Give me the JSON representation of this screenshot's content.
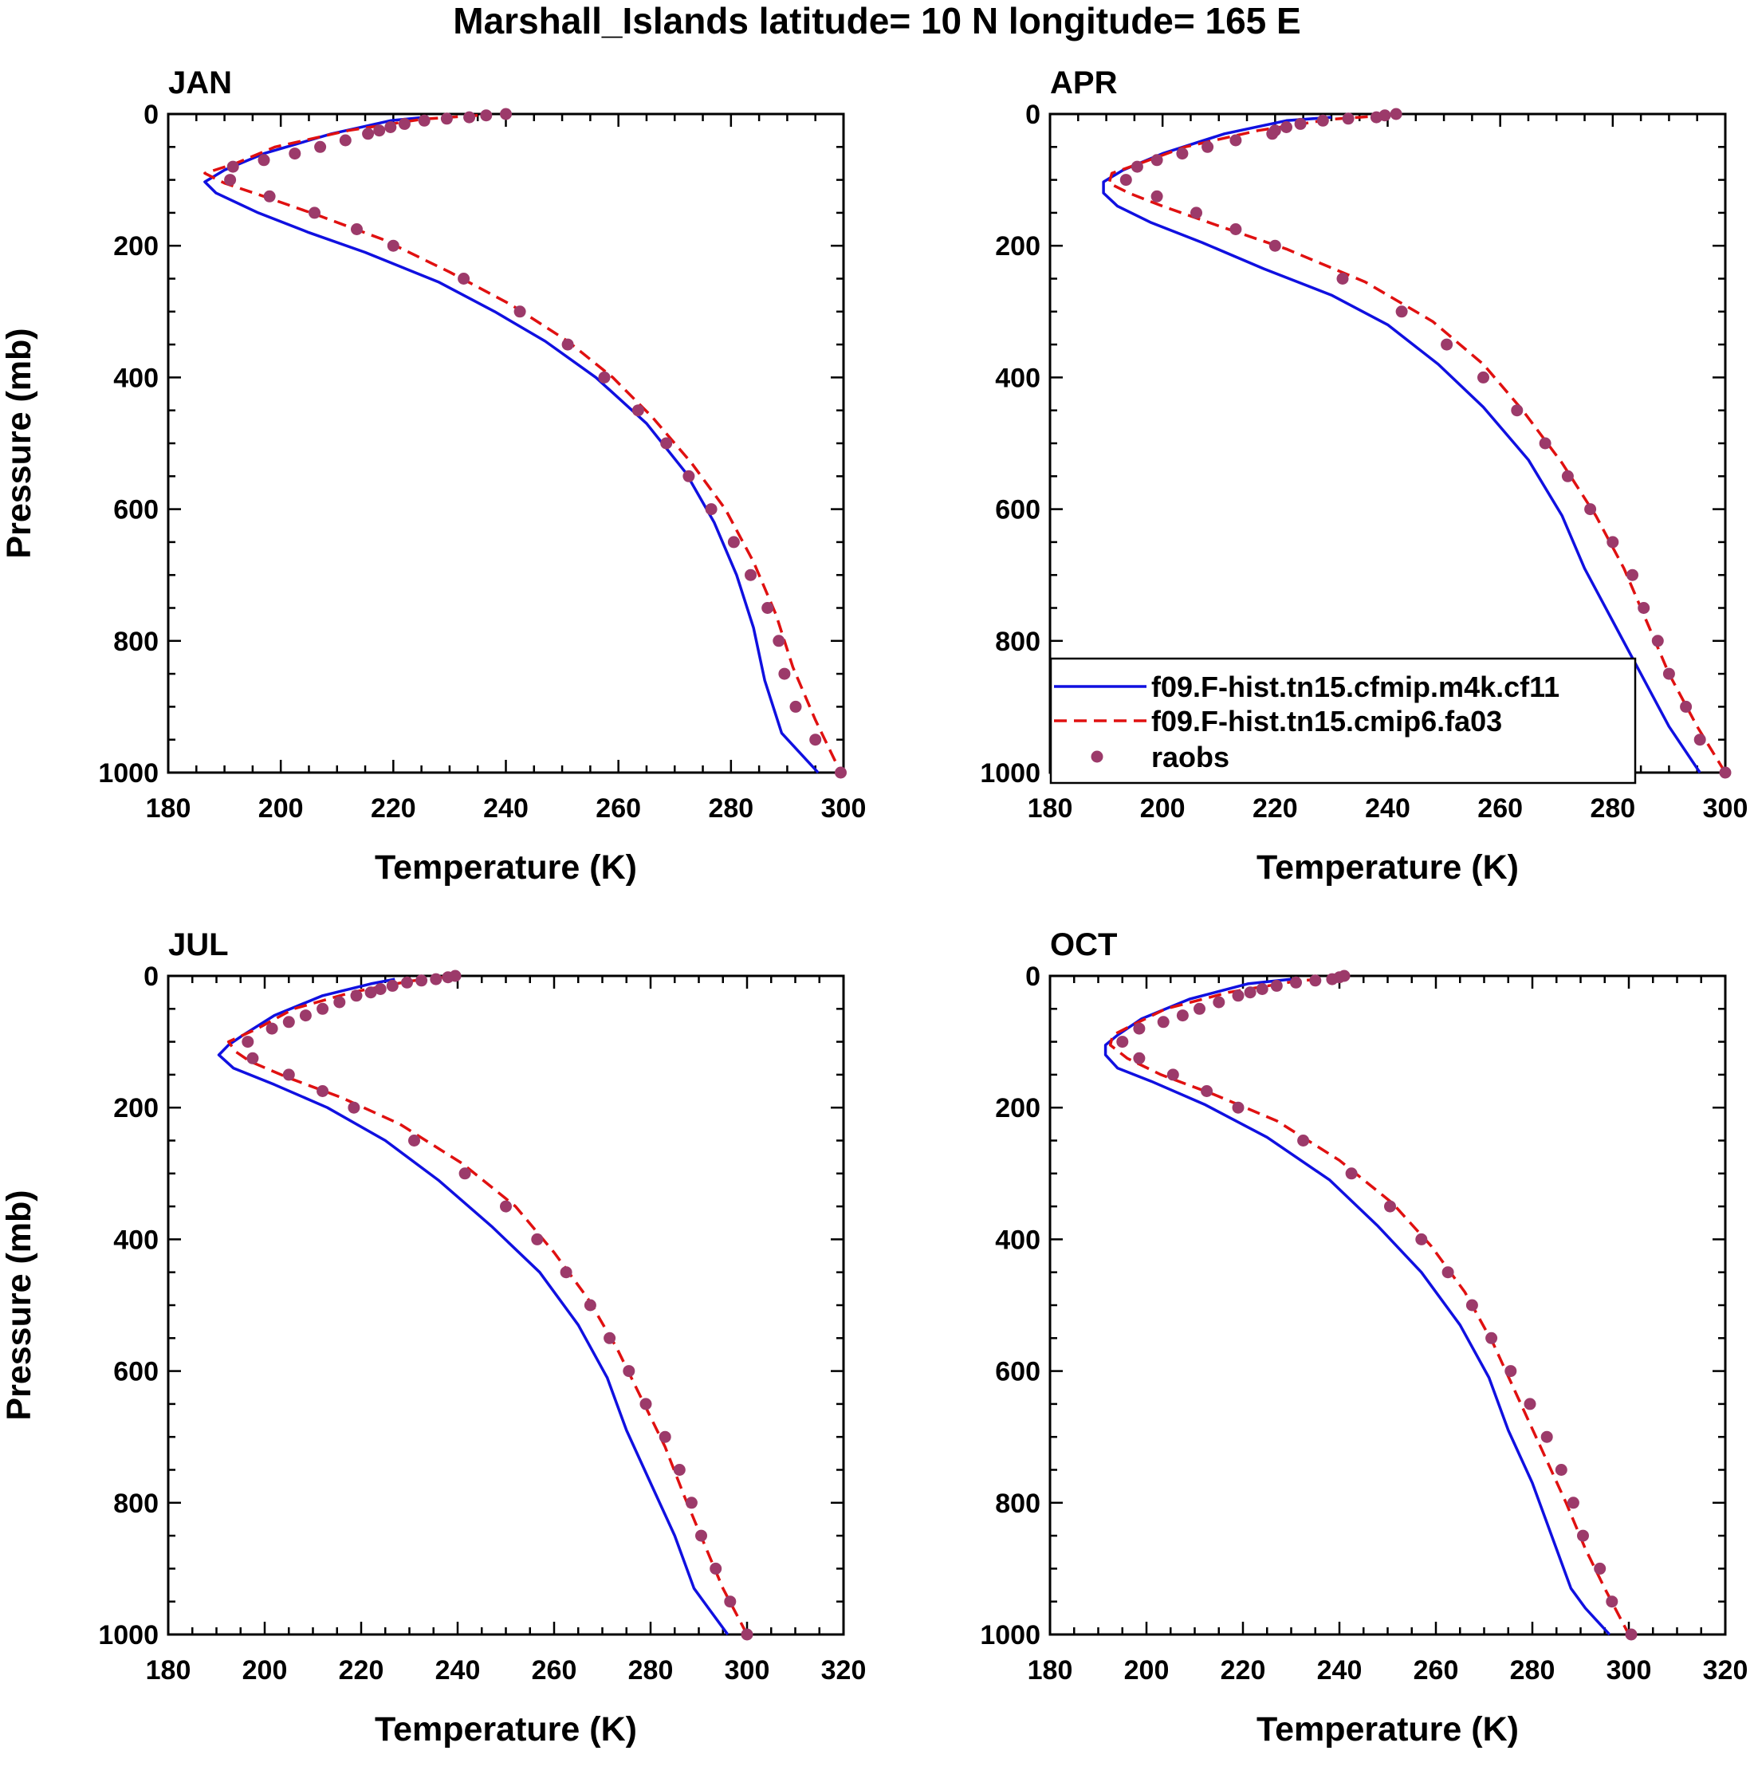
{
  "figure": {
    "title": "Marshall_Islands  latitude= 10 N longitude= 165 E"
  },
  "legend": {
    "items": [
      {
        "label": "f09.F-hist.tn15.cfmip.m4k.cf11",
        "style": "solid",
        "color": "#1010e0"
      },
      {
        "label": "f09.F-hist.tn15.cmip6.fa03",
        "style": "dashed",
        "color": "#e01010"
      },
      {
        "label": "raobs",
        "style": "marker",
        "color": "#9c3a6a"
      }
    ]
  },
  "chart_data": [
    {
      "type": "line",
      "title": "JAN",
      "xlabel": "Temperature (K)",
      "ylabel": "Pressure (mb)",
      "xlim": [
        180,
        300
      ],
      "ylim": [
        1000,
        0
      ],
      "xticks": [
        180,
        200,
        220,
        240,
        260,
        280,
        300
      ],
      "yticks": [
        0,
        200,
        400,
        600,
        800,
        1000
      ],
      "grid": false,
      "series": [
        {
          "name": "f09.F-hist.tn15.cfmip.m4k.cf11",
          "kind": "line",
          "x": [
            225.5,
            219.5,
            209,
            197,
            190,
            186.5,
            188.5,
            196,
            205,
            215,
            228,
            238,
            247,
            256,
            265,
            272,
            277,
            281,
            284,
            286,
            289,
            295.5
          ],
          "y": [
            5,
            10,
            30,
            60,
            85,
            103,
            120,
            150,
            180,
            210,
            255,
            300,
            345,
            400,
            470,
            545,
            620,
            700,
            780,
            860,
            940,
            1000
          ]
        },
        {
          "name": "f09.F-hist.tn15.cmip6.fa03",
          "kind": "line",
          "x": [
            235,
            225,
            212,
            199,
            192,
            186.5,
            190,
            197,
            207,
            218,
            230,
            241,
            251,
            259,
            266,
            273,
            279,
            284,
            288,
            291,
            295,
            299.5
          ],
          "y": [
            2,
            8,
            25,
            50,
            75,
            90,
            105,
            125,
            155,
            190,
            240,
            290,
            345,
            400,
            460,
            530,
            600,
            680,
            760,
            840,
            920,
            1000
          ]
        },
        {
          "name": "raobs",
          "kind": "scatter",
          "x": [
            240,
            236.5,
            233.5,
            229.5,
            225.5,
            222,
            219.5,
            217.5,
            215.5,
            211.5,
            207,
            202.5,
            197,
            191.5,
            191,
            198,
            206,
            213.5,
            220,
            232.5,
            242.5,
            251,
            257.5,
            263.5,
            268.5,
            272.5,
            276.5,
            280.5,
            283.5,
            286.5,
            288.5,
            289.5,
            291.5,
            295,
            299.5
          ],
          "y": [
            0,
            2,
            5,
            7,
            10,
            15,
            20,
            25,
            30,
            40,
            50,
            60,
            70,
            80,
            100,
            125,
            150,
            175,
            200,
            250,
            300,
            350,
            400,
            450,
            500,
            550,
            600,
            650,
            700,
            750,
            800,
            850,
            900,
            950,
            1000
          ]
        }
      ]
    },
    {
      "type": "line",
      "title": "APR",
      "xlabel": "Temperature (K)",
      "ylabel": "",
      "xlim": [
        180,
        300
      ],
      "ylim": [
        1000,
        0
      ],
      "xticks": [
        180,
        200,
        220,
        240,
        260,
        280,
        300
      ],
      "yticks": [
        0,
        200,
        400,
        600,
        800,
        1000
      ],
      "grid": false,
      "series": [
        {
          "name": "f09.F-hist.tn15.cfmip.m4k.cf11",
          "kind": "line",
          "x": [
            230,
            222,
            211,
            200,
            193,
            189.5,
            189.5,
            192,
            198,
            207,
            218,
            230,
            240,
            249,
            257,
            265,
            271,
            275,
            280,
            285,
            290,
            295.5
          ],
          "y": [
            5,
            10,
            30,
            60,
            85,
            103,
            120,
            140,
            165,
            195,
            235,
            275,
            320,
            380,
            445,
            525,
            610,
            690,
            770,
            850,
            930,
            1000
          ]
        },
        {
          "name": "f09.F-hist.tn15.cmip6.fa03",
          "kind": "line",
          "x": [
            240,
            230,
            217,
            204,
            196,
            191,
            190.5,
            194,
            200,
            210,
            222,
            236,
            248,
            257,
            264,
            271,
            277,
            282,
            286,
            290,
            295,
            300
          ],
          "y": [
            2,
            8,
            25,
            50,
            75,
            90,
            105,
            120,
            140,
            170,
            205,
            255,
            315,
            380,
            450,
            530,
            610,
            690,
            770,
            850,
            930,
            1000
          ]
        },
        {
          "name": "raobs",
          "kind": "scatter",
          "x": [
            241.5,
            239.5,
            238,
            233,
            228.5,
            224.5,
            222,
            220,
            219.5,
            213,
            208,
            203.5,
            199,
            195.5,
            193.5,
            199,
            206,
            213,
            220,
            232,
            242.5,
            250.5,
            257,
            263,
            268,
            272,
            276,
            280,
            283.5,
            285.5,
            288,
            290,
            293,
            295.5,
            300
          ],
          "y": [
            0,
            2,
            5,
            7,
            10,
            15,
            20,
            25,
            30,
            40,
            50,
            60,
            70,
            80,
            100,
            125,
            150,
            175,
            200,
            250,
            300,
            350,
            400,
            450,
            500,
            550,
            600,
            650,
            700,
            750,
            800,
            850,
            900,
            950,
            1000
          ]
        }
      ]
    },
    {
      "type": "line",
      "title": "JUL",
      "xlabel": "Temperature (K)",
      "ylabel": "Pressure (mb)",
      "xlim": [
        180,
        320
      ],
      "ylim": [
        1000,
        0
      ],
      "xticks": [
        180,
        200,
        220,
        240,
        260,
        280,
        300,
        320
      ],
      "yticks": [
        0,
        200,
        400,
        600,
        800,
        1000
      ],
      "grid": false,
      "series": [
        {
          "name": "f09.F-hist.tn15.cfmip.m4k.cf11",
          "kind": "line",
          "x": [
            227,
            222,
            212,
            202,
            195.5,
            192.5,
            190.5,
            193.5,
            202,
            213,
            225,
            236,
            247,
            257,
            265,
            271,
            275,
            280,
            285,
            289,
            292,
            296
          ],
          "y": [
            5,
            12,
            30,
            60,
            90,
            105,
            120,
            140,
            165,
            200,
            250,
            310,
            380,
            450,
            530,
            610,
            690,
            770,
            850,
            930,
            960,
            1000
          ]
        },
        {
          "name": "f09.F-hist.tn15.cmip6.fa03",
          "kind": "line",
          "x": [
            237,
            230,
            218,
            206,
            198.5,
            192.5,
            194,
            197,
            205,
            216,
            228,
            241,
            252,
            260,
            267,
            273,
            278,
            283,
            287,
            291,
            295,
            300
          ],
          "y": [
            2,
            8,
            25,
            50,
            80,
            100,
            115,
            130,
            155,
            185,
            225,
            285,
            350,
            420,
            490,
            565,
            640,
            715,
            790,
            860,
            930,
            1000
          ]
        },
        {
          "name": "raobs",
          "kind": "scatter",
          "x": [
            239.5,
            238,
            235.5,
            232.5,
            229.5,
            226.5,
            224,
            222,
            219,
            215.5,
            212,
            208.5,
            205,
            201.5,
            196.5,
            197.5,
            205,
            212,
            218.5,
            231,
            241.5,
            250,
            256.5,
            262.5,
            267.5,
            271.5,
            275.5,
            279,
            283,
            286,
            288.5,
            290.5,
            293.5,
            296.5,
            300
          ],
          "y": [
            0,
            2,
            5,
            7,
            10,
            15,
            20,
            25,
            30,
            40,
            50,
            60,
            70,
            80,
            100,
            125,
            150,
            175,
            200,
            250,
            300,
            350,
            400,
            450,
            500,
            550,
            600,
            650,
            700,
            750,
            800,
            850,
            900,
            950,
            1000
          ]
        }
      ]
    },
    {
      "type": "line",
      "title": "OCT",
      "xlabel": "Temperature (K)",
      "ylabel": "",
      "xlim": [
        180,
        320
      ],
      "ylim": [
        1000,
        0
      ],
      "xticks": [
        180,
        200,
        220,
        240,
        260,
        280,
        300,
        320
      ],
      "yticks": [
        0,
        200,
        400,
        600,
        800,
        1000
      ],
      "grid": false,
      "series": [
        {
          "name": "f09.F-hist.tn15.cfmip.m4k.cf11",
          "kind": "line",
          "x": [
            230,
            221,
            209,
            199,
            194,
            191.5,
            191.5,
            194,
            201,
            212,
            225,
            238,
            248,
            257,
            265,
            271,
            275,
            280,
            284,
            288,
            291,
            296
          ],
          "y": [
            5,
            12,
            35,
            65,
            90,
            105,
            120,
            140,
            160,
            195,
            245,
            310,
            380,
            450,
            530,
            610,
            690,
            770,
            850,
            930,
            960,
            1000
          ]
        },
        {
          "name": "f09.F-hist.tn15.cmip6.fa03",
          "kind": "line",
          "x": [
            240,
            231,
            217,
            204,
            197,
            193,
            192.5,
            196,
            203,
            214,
            227,
            240,
            251,
            259,
            266,
            272,
            277,
            282,
            287,
            291,
            295,
            300
          ],
          "y": [
            2,
            8,
            25,
            50,
            75,
            90,
            105,
            125,
            150,
            180,
            220,
            280,
            345,
            410,
            480,
            560,
            640,
            720,
            800,
            870,
            930,
            1000
          ]
        },
        {
          "name": "raobs",
          "kind": "scatter",
          "x": [
            241,
            240,
            238.5,
            235,
            231,
            227,
            224,
            221.5,
            219,
            215,
            211,
            207.5,
            203.5,
            198.5,
            195,
            198.5,
            205.5,
            212.5,
            219,
            232.5,
            242.5,
            250.5,
            257,
            262.5,
            267.5,
            271.5,
            275.5,
            279.5,
            283,
            286,
            288.5,
            290.5,
            294,
            296.5,
            300.5
          ],
          "y": [
            0,
            2,
            5,
            7,
            10,
            15,
            20,
            25,
            30,
            40,
            50,
            60,
            70,
            80,
            100,
            125,
            150,
            175,
            200,
            250,
            300,
            350,
            400,
            450,
            500,
            550,
            600,
            650,
            700,
            750,
            800,
            850,
            900,
            950,
            1000
          ]
        }
      ]
    }
  ]
}
